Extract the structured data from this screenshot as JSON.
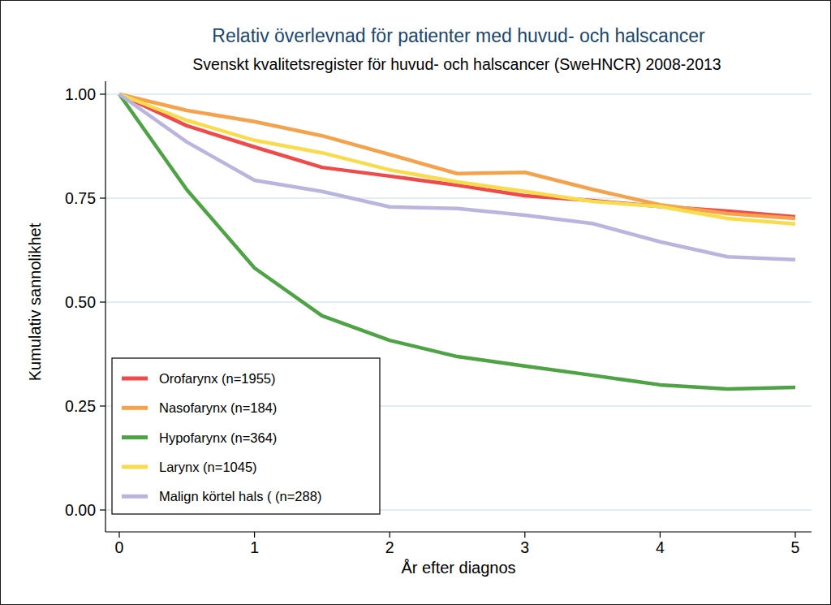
{
  "chart_data": {
    "type": "line",
    "title": "Relativ överlevnad för patienter med huvud- och halscancer",
    "subtitle": "Svenskt kvalitetsregister för huvud- och halscancer (SweHNCR) 2008-2013",
    "x_label": "År efter diagnos",
    "y_label": "Kumulativ sannolikhet",
    "x": [
      0,
      0.5,
      1,
      1.5,
      2,
      2.5,
      3,
      3.5,
      4,
      4.5,
      5
    ],
    "series": [
      {
        "name": "Orofarynx (n=1955)",
        "color": "#ef4b4b",
        "values": [
          1.0,
          0.924,
          0.873,
          0.824,
          0.803,
          0.781,
          0.756,
          0.744,
          0.73,
          0.719,
          0.705
        ]
      },
      {
        "name": "Nasofarynx (n=184)",
        "color": "#f4a24c",
        "values": [
          1.0,
          0.961,
          0.934,
          0.9,
          0.855,
          0.809,
          0.812,
          0.771,
          0.734,
          0.713,
          0.701
        ]
      },
      {
        "name": "Hypofarynx (n=364)",
        "color": "#4ea344",
        "values": [
          1.0,
          0.77,
          0.582,
          0.467,
          0.408,
          0.369,
          0.346,
          0.324,
          0.301,
          0.291,
          0.295
        ]
      },
      {
        "name": "Larynx (n=1045)",
        "color": "#f8dc4e",
        "values": [
          1.0,
          0.937,
          0.889,
          0.859,
          0.818,
          0.789,
          0.766,
          0.742,
          0.73,
          0.701,
          0.688
        ]
      },
      {
        "name": "Malign körtel hals ( (n=288)",
        "color": "#b9b5df",
        "values": [
          1.0,
          0.885,
          0.793,
          0.766,
          0.729,
          0.725,
          0.709,
          0.689,
          0.645,
          0.609,
          0.602
        ]
      }
    ],
    "xlim": [
      0,
      5
    ],
    "xticks": [
      0,
      1,
      2,
      3,
      4,
      5
    ],
    "ylim": [
      0,
      1
    ],
    "yticks": [
      {
        "value": 0,
        "label": "0.00"
      },
      {
        "value": 0.25,
        "label": "0.25"
      },
      {
        "value": 0.5,
        "label": "0.50"
      },
      {
        "value": 0.75,
        "label": "0.75"
      },
      {
        "value": 1,
        "label": "1.00"
      }
    ],
    "grid": true,
    "legend": "lower left"
  }
}
